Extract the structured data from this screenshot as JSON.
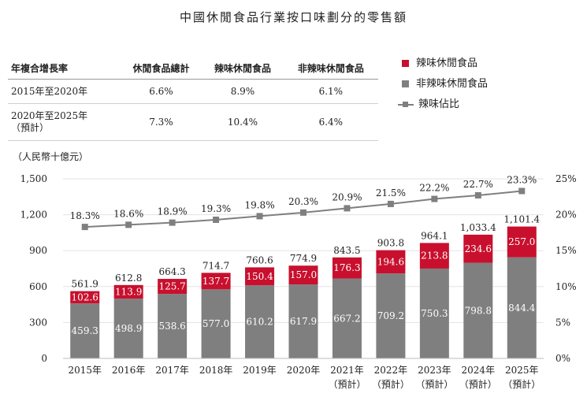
{
  "title": "中國休閒食品行業按口味劃分的零售額",
  "cagr_table": {
    "headers": [
      "年複合增長率",
      "休閒食品總計",
      "辣味休閒食品",
      "非辣味休閒食品"
    ],
    "rows": [
      {
        "label_line1": "2015年至2020年",
        "label_line2": "",
        "values": [
          "6.6%",
          "8.9%",
          "6.1%"
        ]
      },
      {
        "label_line1": "2020年至2025年",
        "label_line2": "（預計）",
        "values": [
          "7.3%",
          "10.4%",
          "6.4%"
        ]
      }
    ]
  },
  "legend": [
    {
      "label": "辣味休閒食品",
      "color": "#c8102e"
    },
    {
      "label": "非辣味休閒食品",
      "color": "#7f7f7f"
    },
    {
      "label": "辣味佔比",
      "color": "#7f7f7f"
    }
  ],
  "chart_data": {
    "type": "bar",
    "stacked": true,
    "unit_label": "（人民幣十億元）",
    "categories": [
      {
        "year": "2015年",
        "note": ""
      },
      {
        "year": "2016年",
        "note": ""
      },
      {
        "year": "2017年",
        "note": ""
      },
      {
        "year": "2018年",
        "note": ""
      },
      {
        "year": "2019年",
        "note": ""
      },
      {
        "year": "2020年",
        "note": ""
      },
      {
        "year": "2021年",
        "note": "（預計）"
      },
      {
        "year": "2022年",
        "note": "（預計）"
      },
      {
        "year": "2023年",
        "note": "（預計）"
      },
      {
        "year": "2024年",
        "note": "（預計）"
      },
      {
        "year": "2025年",
        "note": "（預計）"
      }
    ],
    "series": [
      {
        "name": "非辣味休閒食品",
        "color": "#7f7f7f",
        "values": [
          459.3,
          498.9,
          538.6,
          577.0,
          610.2,
          617.9,
          667.2,
          709.2,
          750.3,
          798.8,
          844.4
        ],
        "labels": [
          "459.3",
          "498.9",
          "538.6",
          "577.0",
          "610.2",
          "617.9",
          "667.2",
          "709.2",
          "750.3",
          "798.8",
          "844.4"
        ]
      },
      {
        "name": "辣味休閒食品",
        "color": "#c8102e",
        "values": [
          102.6,
          113.9,
          125.7,
          137.7,
          150.4,
          157.0,
          176.3,
          194.6,
          213.8,
          234.6,
          257.0
        ],
        "labels": [
          "102.6",
          "113.9",
          "125.7",
          "137.7",
          "150.4",
          "157.0",
          "176.3",
          "194.6",
          "213.8",
          "234.6",
          "257.0"
        ]
      }
    ],
    "totals": [
      561.9,
      612.8,
      664.3,
      714.7,
      760.6,
      774.9,
      843.5,
      903.8,
      964.1,
      1033.4,
      1101.4
    ],
    "total_labels": [
      "561.9",
      "612.8",
      "664.3",
      "714.7",
      "760.6",
      "774.9",
      "843.5",
      "903.8",
      "964.1",
      "1,033.4",
      "1,101.4"
    ],
    "line": {
      "name": "辣味佔比",
      "color": "#7f7f7f",
      "values": [
        18.3,
        18.6,
        18.9,
        19.3,
        19.8,
        20.3,
        20.9,
        21.5,
        22.2,
        22.7,
        23.3
      ],
      "labels": [
        "18.3%",
        "18.6%",
        "18.9%",
        "19.3%",
        "19.8%",
        "20.3%",
        "20.9%",
        "21.5%",
        "22.2%",
        "22.7%",
        "23.3%"
      ]
    },
    "y_left": {
      "min": 0,
      "max": 1500,
      "ticks": [
        0,
        300,
        600,
        900,
        1200,
        1500
      ],
      "tick_labels": [
        "0",
        "300",
        "600",
        "900",
        "1,200",
        "1,500"
      ]
    },
    "y_right": {
      "min": 0,
      "max": 25,
      "ticks": [
        0,
        5,
        10,
        15,
        20,
        25
      ],
      "tick_labels": [
        "0%",
        "5%",
        "10%",
        "15%",
        "20%",
        "25%"
      ]
    },
    "grid": true,
    "legend_position": "top-right"
  }
}
